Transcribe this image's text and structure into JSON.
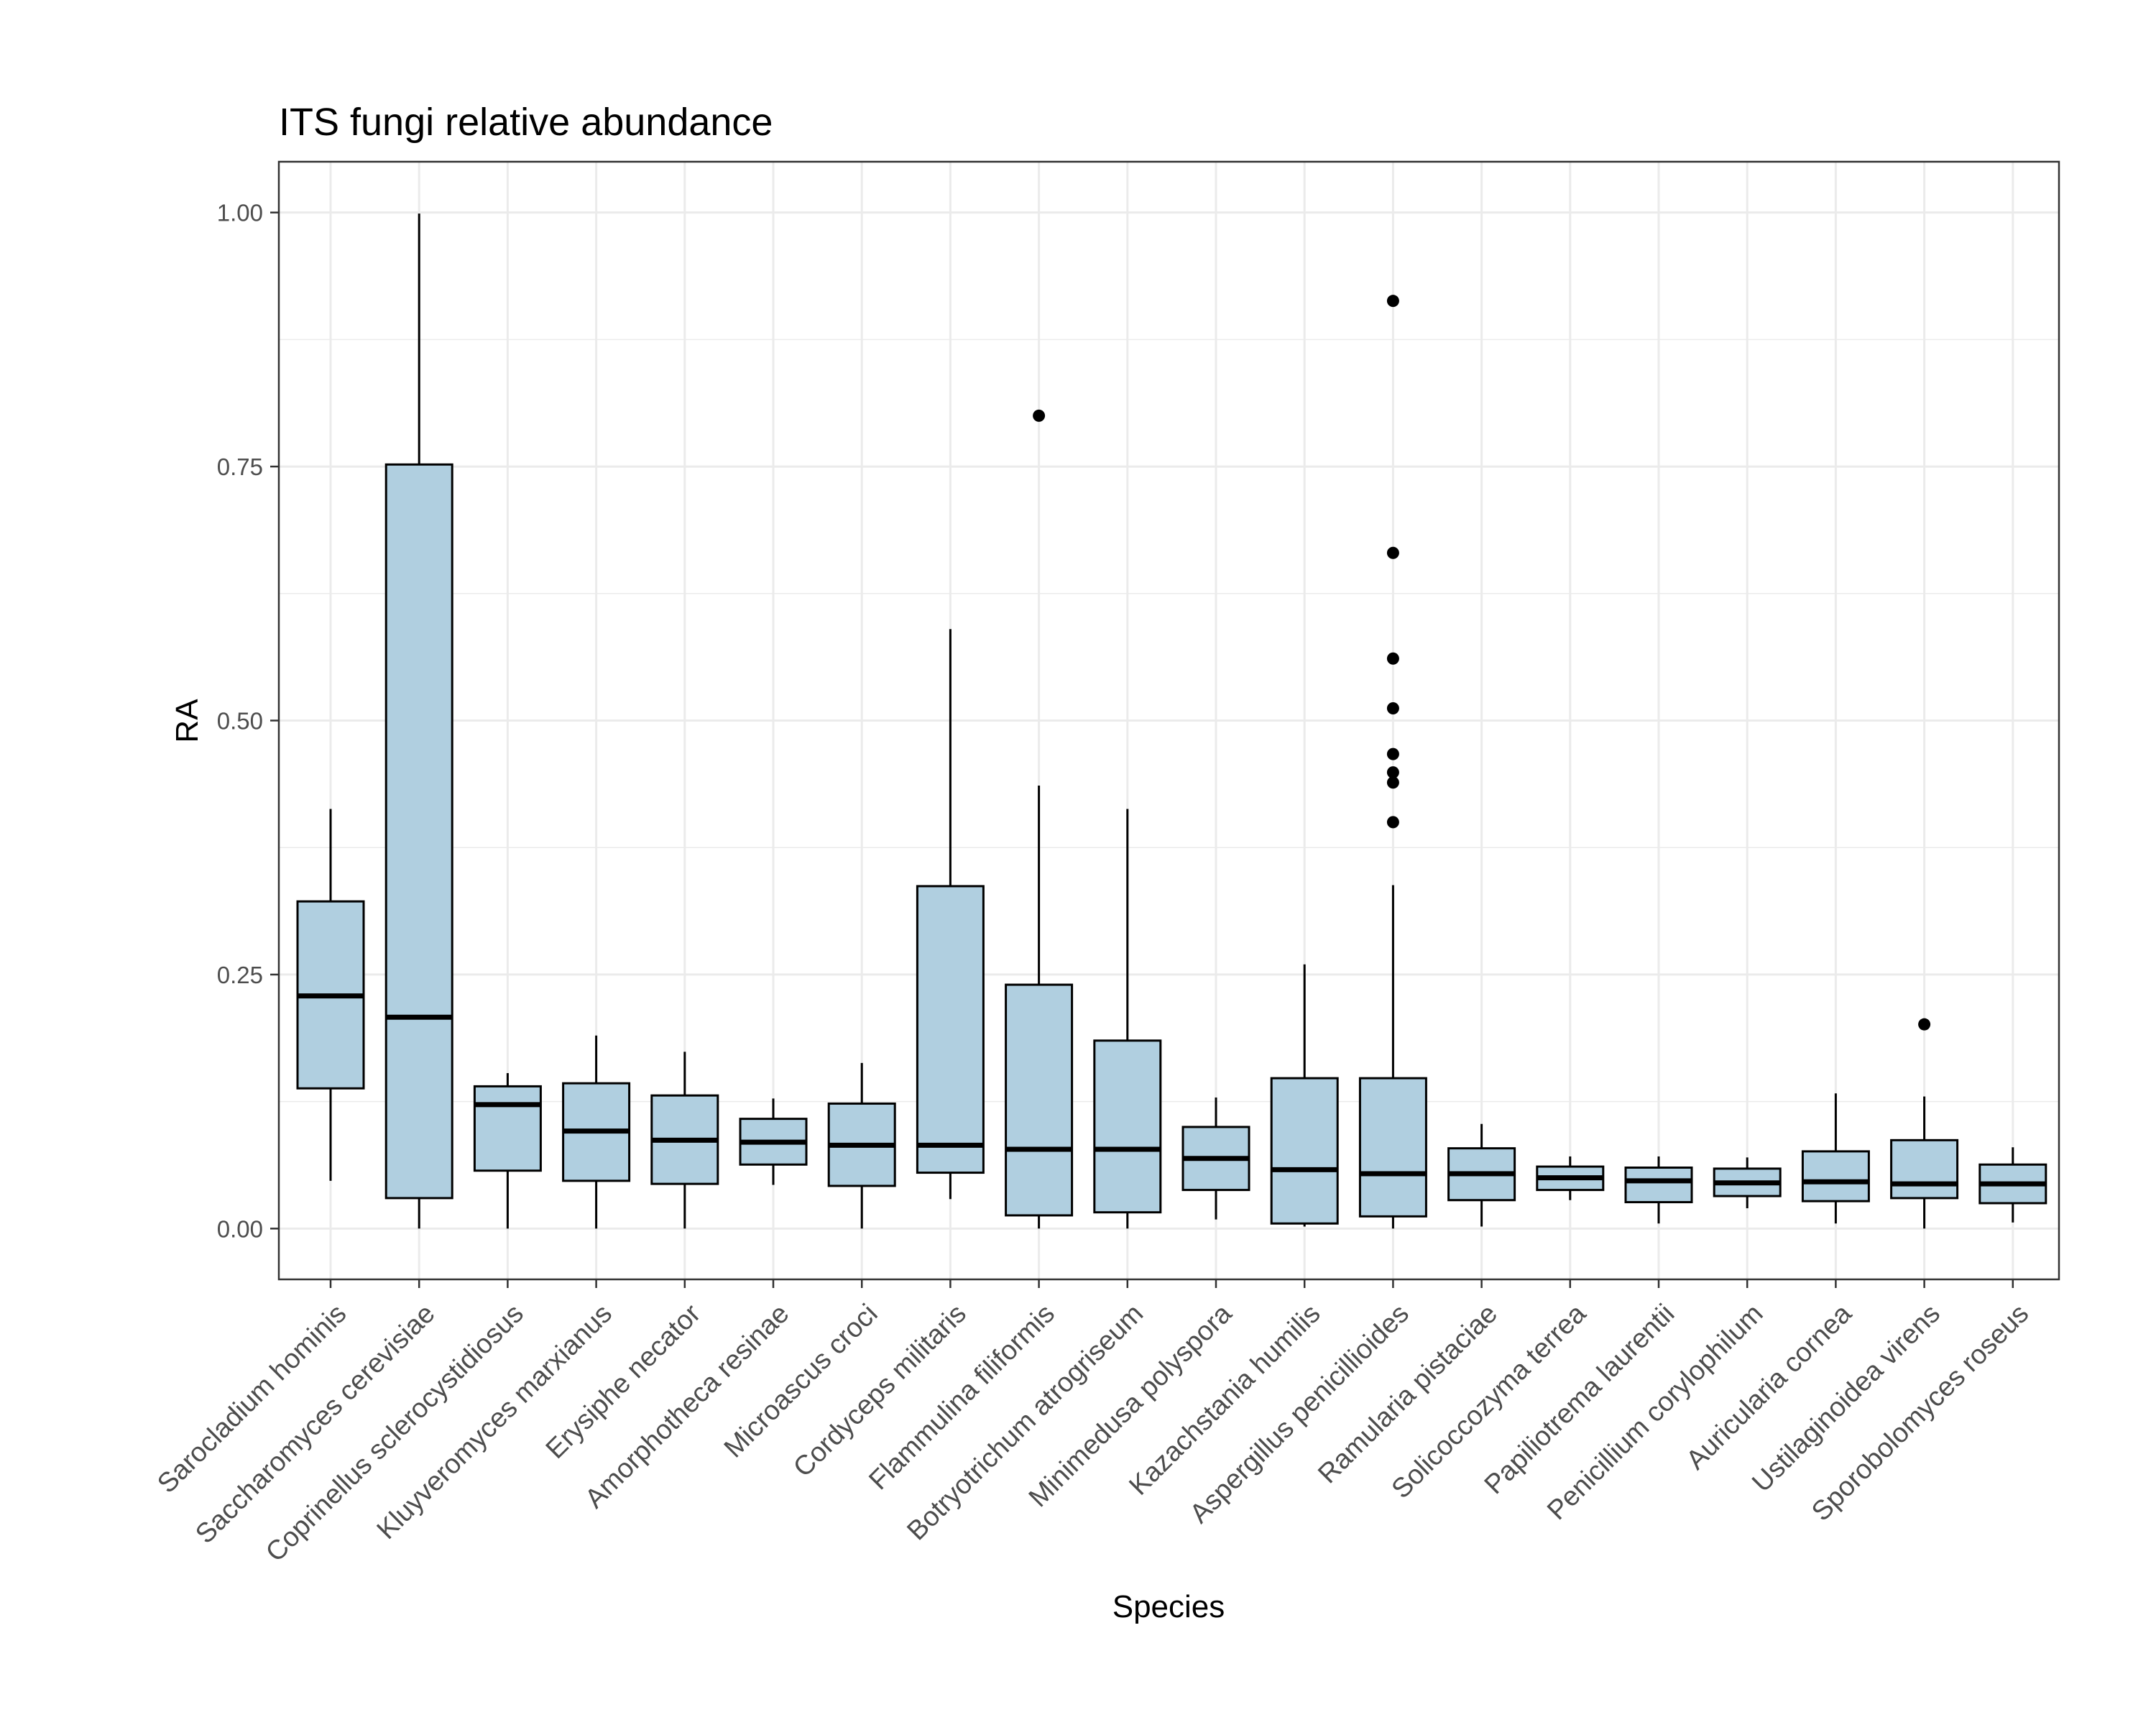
{
  "chart_data": {
    "type": "boxplot",
    "title": "ITS fungi relative abundance",
    "xlabel": "Species",
    "ylabel": "RA",
    "ylim": [
      -0.05,
      1.05
    ],
    "yticks": [
      "0.00",
      "0.25",
      "0.50",
      "0.75",
      "1.00"
    ],
    "ytick_values": [
      0,
      0.25,
      0.5,
      0.75,
      1.0
    ],
    "grid": true,
    "colors": {
      "box_fill": "#b0cfe0",
      "box_stroke": "#000000",
      "grid": "#ebebeb",
      "panel_border": "#333333"
    },
    "categories": [
      "Sarocladium hominis",
      "Saccharomyces cerevisiae",
      "Coprinellus sclerocystidiosus",
      "Kluyveromyces marxianus",
      "Erysiphe necator",
      "Amorphotheca resinae",
      "Microascus croci",
      "Cordyceps militaris",
      "Flammulina filiformis",
      "Botryotrichum atrogriseum",
      "Minimedusa polyspora",
      "Kazachstania humilis",
      "Aspergillus penicillioides",
      "Ramularia pistaciae",
      "Solicoccozyma terrea",
      "Papiliotrema laurentii",
      "Penicillium corylophilum",
      "Auricularia cornea",
      "Ustilaginoidea virens",
      "Sporobolomyces roseus"
    ],
    "boxes": [
      {
        "min": 0.047,
        "q1": 0.138,
        "median": 0.229,
        "q3": 0.322,
        "max": 0.413,
        "outliers": []
      },
      {
        "min": 0.0,
        "q1": 0.03,
        "median": 0.208,
        "q3": 0.752,
        "max": 0.999,
        "outliers": []
      },
      {
        "min": 0.0,
        "q1": 0.057,
        "median": 0.122,
        "q3": 0.14,
        "max": 0.153,
        "outliers": []
      },
      {
        "min": 0.0,
        "q1": 0.047,
        "median": 0.096,
        "q3": 0.143,
        "max": 0.19,
        "outliers": []
      },
      {
        "min": 0.0,
        "q1": 0.044,
        "median": 0.087,
        "q3": 0.131,
        "max": 0.174,
        "outliers": []
      },
      {
        "min": 0.043,
        "q1": 0.063,
        "median": 0.085,
        "q3": 0.108,
        "max": 0.128,
        "outliers": []
      },
      {
        "min": 0.0,
        "q1": 0.042,
        "median": 0.082,
        "q3": 0.123,
        "max": 0.163,
        "outliers": []
      },
      {
        "min": 0.029,
        "q1": 0.055,
        "median": 0.082,
        "q3": 0.337,
        "max": 0.59,
        "outliers": []
      },
      {
        "min": 0.0,
        "q1": 0.013,
        "median": 0.078,
        "q3": 0.24,
        "max": 0.436,
        "outliers": [
          0.8
        ]
      },
      {
        "min": 0.0,
        "q1": 0.016,
        "median": 0.078,
        "q3": 0.185,
        "max": 0.413,
        "outliers": []
      },
      {
        "min": 0.009,
        "q1": 0.038,
        "median": 0.069,
        "q3": 0.1,
        "max": 0.129,
        "outliers": []
      },
      {
        "min": 0.002,
        "q1": 0.005,
        "median": 0.058,
        "q3": 0.148,
        "max": 0.26,
        "outliers": []
      },
      {
        "min": 0.0,
        "q1": 0.012,
        "median": 0.054,
        "q3": 0.148,
        "max": 0.338,
        "outliers": [
          0.4,
          0.439,
          0.449,
          0.467,
          0.512,
          0.561,
          0.665,
          0.913
        ]
      },
      {
        "min": 0.002,
        "q1": 0.028,
        "median": 0.054,
        "q3": 0.079,
        "max": 0.103,
        "outliers": []
      },
      {
        "min": 0.028,
        "q1": 0.038,
        "median": 0.05,
        "q3": 0.061,
        "max": 0.071,
        "outliers": []
      },
      {
        "min": 0.005,
        "q1": 0.026,
        "median": 0.047,
        "q3": 0.06,
        "max": 0.071,
        "outliers": []
      },
      {
        "min": 0.02,
        "q1": 0.032,
        "median": 0.045,
        "q3": 0.059,
        "max": 0.07,
        "outliers": []
      },
      {
        "min": 0.005,
        "q1": 0.027,
        "median": 0.046,
        "q3": 0.076,
        "max": 0.133,
        "outliers": []
      },
      {
        "min": 0.0,
        "q1": 0.03,
        "median": 0.044,
        "q3": 0.087,
        "max": 0.13,
        "outliers": [
          0.201
        ]
      },
      {
        "min": 0.006,
        "q1": 0.025,
        "median": 0.044,
        "q3": 0.063,
        "max": 0.08,
        "outliers": []
      }
    ]
  }
}
